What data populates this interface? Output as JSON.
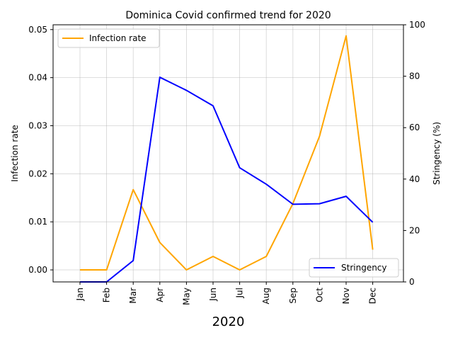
{
  "chart_data": {
    "type": "line",
    "title": "Dominica Covid confirmed trend for 2020",
    "xlabel": "2020",
    "ylabel_left": "Infection rate",
    "ylabel_right": "Stringency (%)",
    "categories": [
      "Jan",
      "Feb",
      "Mar",
      "Apr",
      "May",
      "Jun",
      "Jul",
      "Aug",
      "Sep",
      "Oct",
      "Nov",
      "Dec"
    ],
    "y_left": {
      "lim": [
        -0.0025,
        0.051
      ],
      "ticks": [
        "0.00",
        "0.01",
        "0.02",
        "0.03",
        "0.04",
        "0.05"
      ],
      "tick_values": [
        0,
        0.01,
        0.02,
        0.03,
        0.04,
        0.05
      ]
    },
    "y_right": {
      "lim": [
        0,
        100
      ],
      "ticks": [
        "0",
        "20",
        "40",
        "60",
        "80",
        "100"
      ],
      "tick_values": [
        0,
        20,
        40,
        60,
        80,
        100
      ]
    },
    "grid": true,
    "series": [
      {
        "name": "Infection rate",
        "axis": "left",
        "color": "#FFA500",
        "legend_position": "upper-left",
        "values": [
          0.0,
          0.0,
          0.0167,
          0.0057,
          0.0,
          0.0028,
          0.0,
          0.0028,
          0.0138,
          0.0278,
          0.0487,
          0.0042
        ]
      },
      {
        "name": "Stringency",
        "axis": "right",
        "color": "#0000FF",
        "legend_position": "lower-right",
        "values": [
          0.0,
          0.0,
          8.3,
          79.6,
          74.5,
          68.5,
          44.4,
          38.0,
          30.2,
          30.4,
          33.3,
          23.2
        ]
      }
    ]
  }
}
